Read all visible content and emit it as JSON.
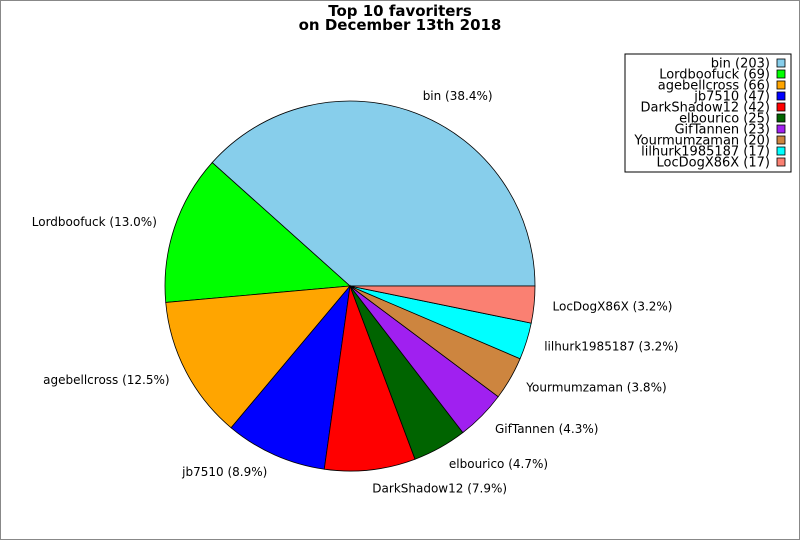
{
  "chart_data": {
    "type": "pie",
    "title": "Top 10 favoriters",
    "subtitle": "on December 13th 2018",
    "legend_position": "top-right",
    "slices": [
      {
        "name": "bin",
        "count": 203,
        "percent_label": "bin (38.4%)",
        "legend_label": "bin (203)",
        "color": "#87ceeb"
      },
      {
        "name": "Lordboofuck",
        "count": 69,
        "percent_label": "Lordboofuck (13.0%)",
        "legend_label": "Lordboofuck (69)",
        "color": "#00ff00"
      },
      {
        "name": "agebellcross",
        "count": 66,
        "percent_label": "agebellcross (12.5%)",
        "legend_label": "agebellcross (66)",
        "color": "#ffa500"
      },
      {
        "name": "jb7510",
        "count": 47,
        "percent_label": "jb7510 (8.9%)",
        "legend_label": "jb7510 (47)",
        "color": "#0000ff"
      },
      {
        "name": "DarkShadow12",
        "count": 42,
        "percent_label": "DarkShadow12 (7.9%)",
        "legend_label": "DarkShadow12 (42)",
        "color": "#ff0000"
      },
      {
        "name": "elbourico",
        "count": 25,
        "percent_label": "elbourico (4.7%)",
        "legend_label": "elbourico (25)",
        "color": "#006400"
      },
      {
        "name": "GifTannen",
        "count": 23,
        "percent_label": "GifTannen (4.3%)",
        "legend_label": "GifTannen (23)",
        "color": "#a020f0"
      },
      {
        "name": "Yourmumzaman",
        "count": 20,
        "percent_label": "Yourmumzaman (3.8%)",
        "legend_label": "Yourmumzaman (20)",
        "color": "#cd853f"
      },
      {
        "name": "lilhurk1985187",
        "count": 17,
        "percent_label": "lilhurk1985187 (3.2%)",
        "legend_label": "lilhurk1985187 (17)",
        "color": "#00ffff"
      },
      {
        "name": "LocDogX86X",
        "count": 17,
        "percent_label": "LocDogX86X (3.2%)",
        "legend_label": "LocDogX86X (17)",
        "color": "#fa8072"
      }
    ]
  }
}
